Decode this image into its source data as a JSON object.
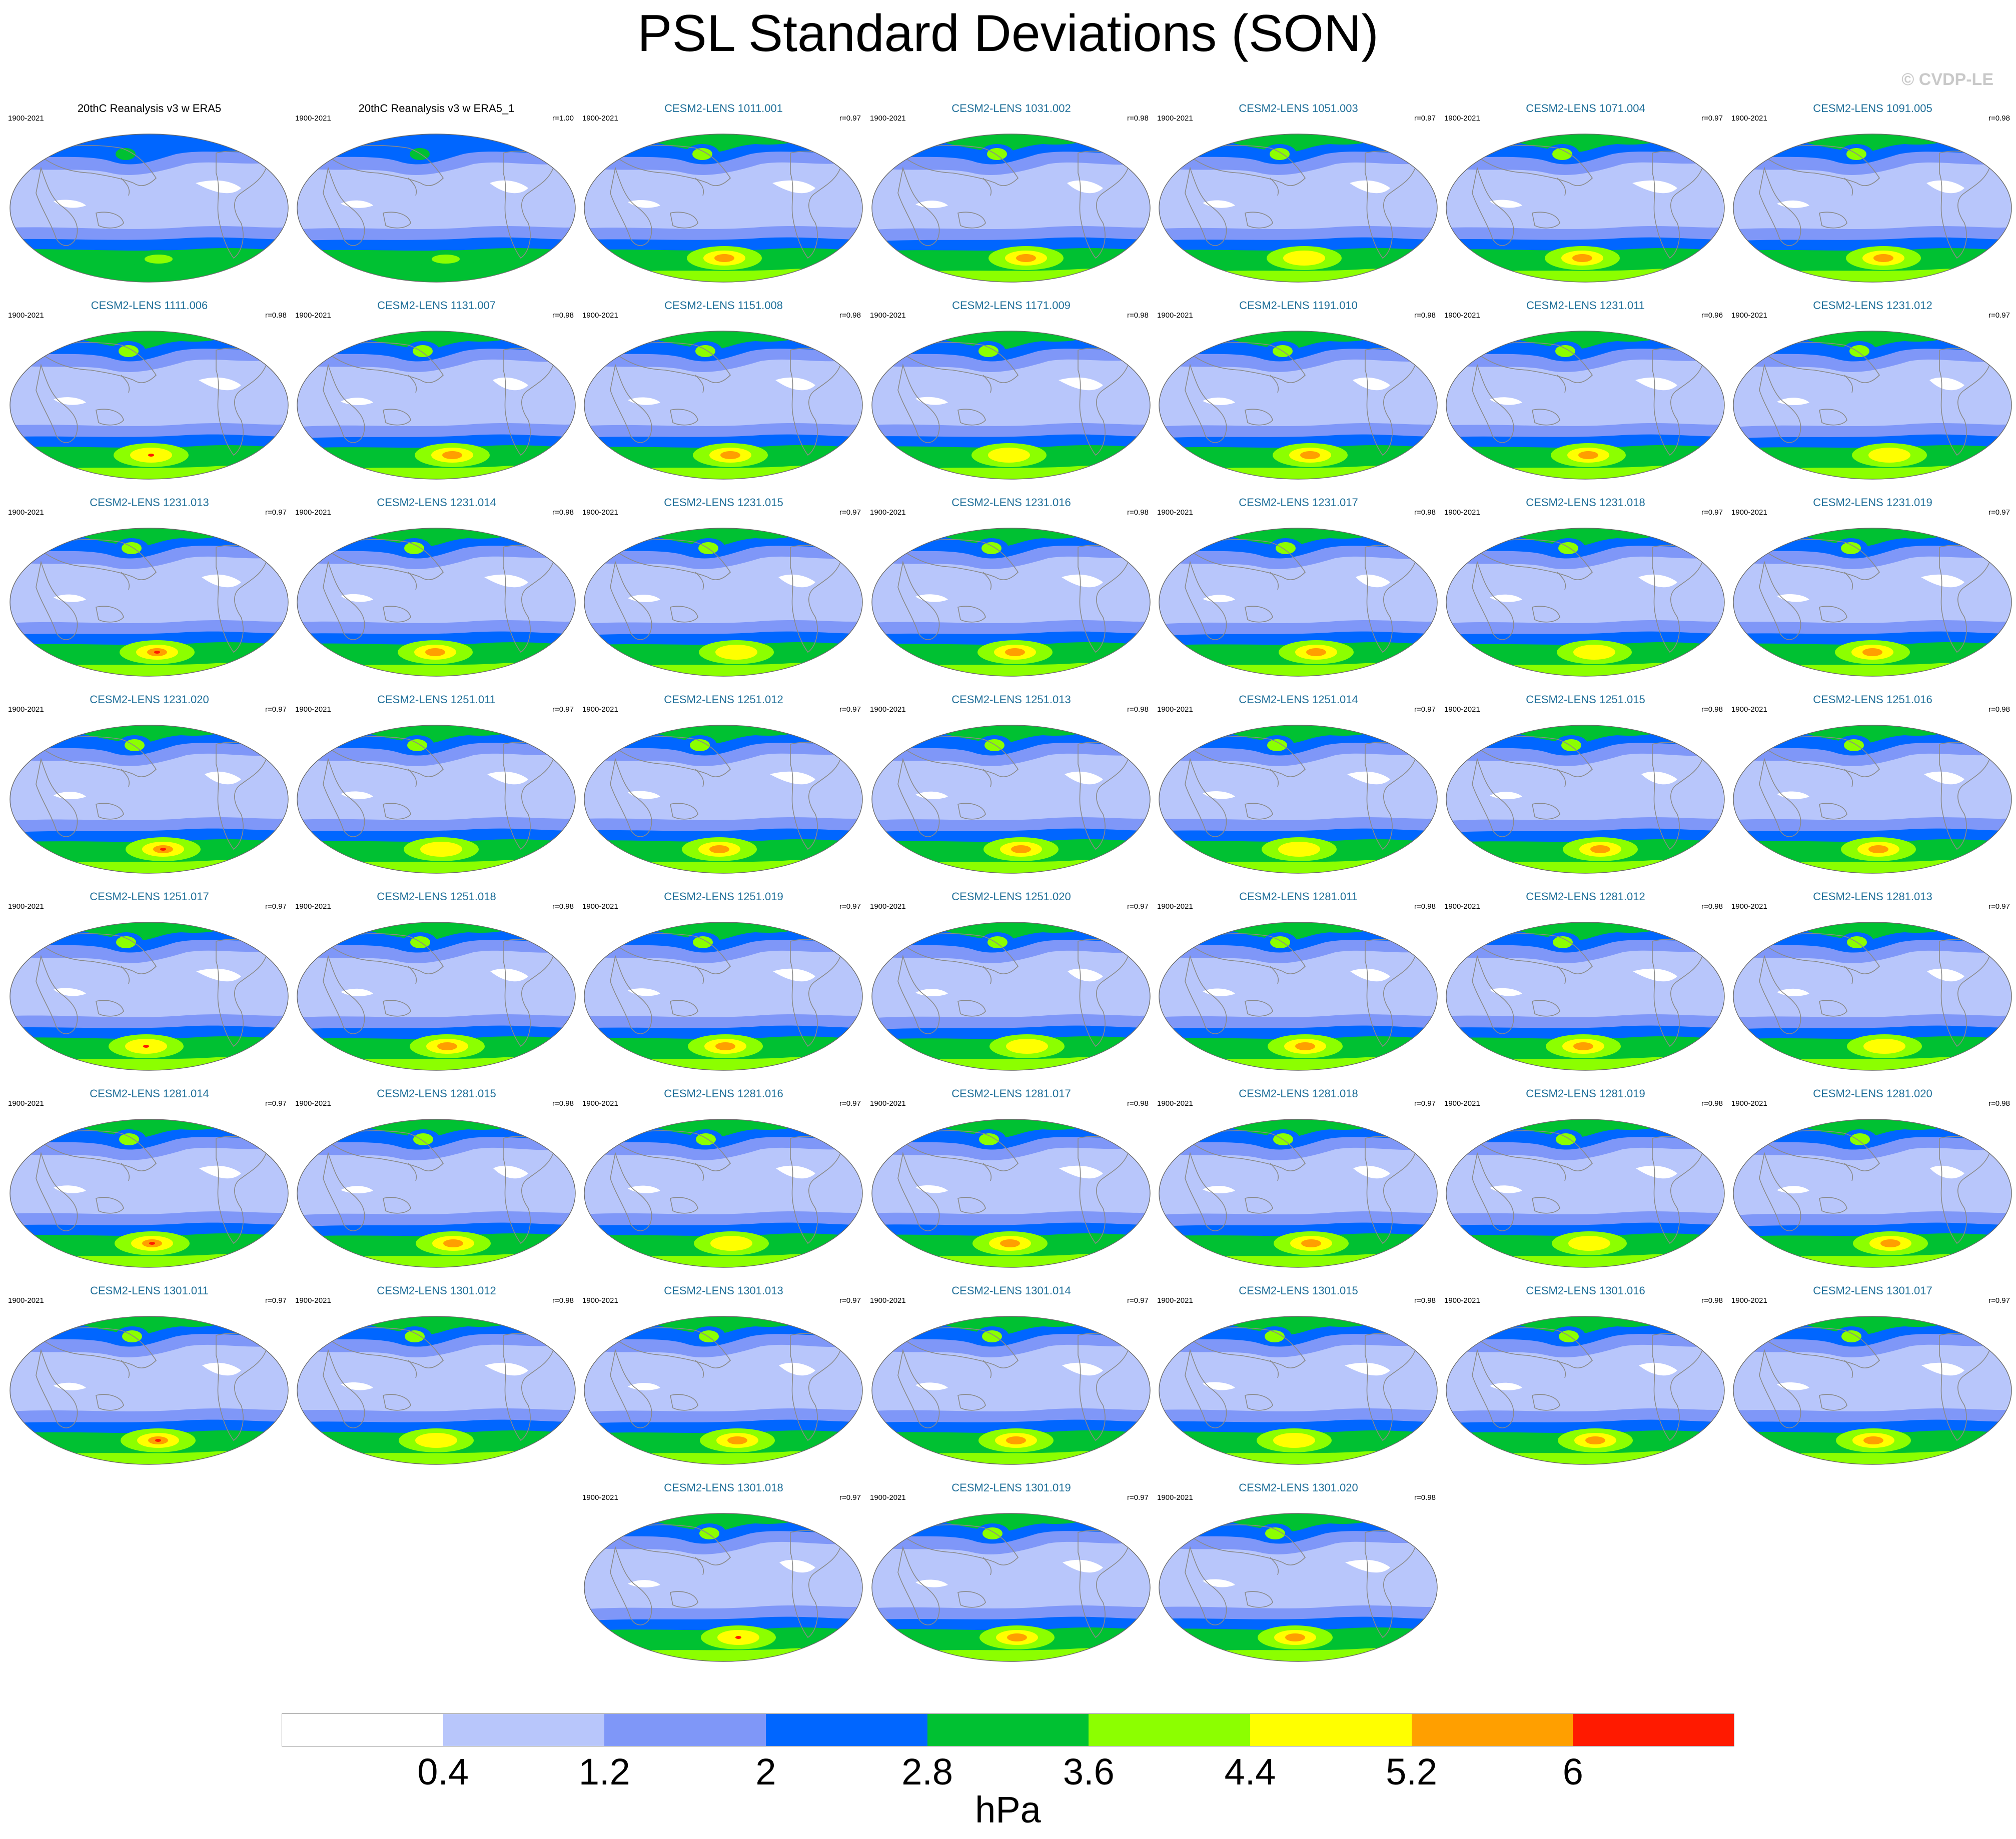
{
  "title": "PSL Standard Deviations (SON)",
  "copyright": "© CVDP-LE",
  "colors": {
    "levels": [
      "#ffffff",
      "#b8c6fb",
      "#7f97f8",
      "#0066ff",
      "#00c132",
      "#8cff00",
      "#ffff00",
      "#ff9f00",
      "#ff1a00"
    ],
    "land_outline": "#8a8a8a",
    "model_title": "#1f6f99"
  },
  "panels": [
    {
      "title": "20thC Reanalysis v3 w ERA5",
      "years": "1900-2021",
      "corr": "",
      "kind": "obs"
    },
    {
      "title": "20thC Reanalysis v3 w ERA5_1",
      "years": "1900-2021",
      "corr": "r=1.00",
      "kind": "obs"
    },
    {
      "title": "CESM2-LENS 1011.001",
      "years": "1900-2021",
      "corr": "r=0.97",
      "kind": "model"
    },
    {
      "title": "CESM2-LENS 1031.002",
      "years": "1900-2021",
      "corr": "r=0.98",
      "kind": "model"
    },
    {
      "title": "CESM2-LENS 1051.003",
      "years": "1900-2021",
      "corr": "r=0.97",
      "kind": "model"
    },
    {
      "title": "CESM2-LENS 1071.004",
      "years": "1900-2021",
      "corr": "r=0.97",
      "kind": "model"
    },
    {
      "title": "CESM2-LENS 1091.005",
      "years": "1900-2021",
      "corr": "r=0.98",
      "kind": "model"
    },
    {
      "title": "CESM2-LENS 1111.006",
      "years": "1900-2021",
      "corr": "r=0.98",
      "kind": "model"
    },
    {
      "title": "CESM2-LENS 1131.007",
      "years": "1900-2021",
      "corr": "r=0.98",
      "kind": "model"
    },
    {
      "title": "CESM2-LENS 1151.008",
      "years": "1900-2021",
      "corr": "r=0.98",
      "kind": "model"
    },
    {
      "title": "CESM2-LENS 1171.009",
      "years": "1900-2021",
      "corr": "r=0.98",
      "kind": "model"
    },
    {
      "title": "CESM2-LENS 1191.010",
      "years": "1900-2021",
      "corr": "r=0.98",
      "kind": "model"
    },
    {
      "title": "CESM2-LENS 1231.011",
      "years": "1900-2021",
      "corr": "r=0.96",
      "kind": "model"
    },
    {
      "title": "CESM2-LENS 1231.012",
      "years": "1900-2021",
      "corr": "r=0.97",
      "kind": "model"
    },
    {
      "title": "CESM2-LENS 1231.013",
      "years": "1900-2021",
      "corr": "r=0.97",
      "kind": "model"
    },
    {
      "title": "CESM2-LENS 1231.014",
      "years": "1900-2021",
      "corr": "r=0.98",
      "kind": "model"
    },
    {
      "title": "CESM2-LENS 1231.015",
      "years": "1900-2021",
      "corr": "r=0.97",
      "kind": "model"
    },
    {
      "title": "CESM2-LENS 1231.016",
      "years": "1900-2021",
      "corr": "r=0.98",
      "kind": "model"
    },
    {
      "title": "CESM2-LENS 1231.017",
      "years": "1900-2021",
      "corr": "r=0.98",
      "kind": "model"
    },
    {
      "title": "CESM2-LENS 1231.018",
      "years": "1900-2021",
      "corr": "r=0.97",
      "kind": "model"
    },
    {
      "title": "CESM2-LENS 1231.019",
      "years": "1900-2021",
      "corr": "r=0.97",
      "kind": "model"
    },
    {
      "title": "CESM2-LENS 1231.020",
      "years": "1900-2021",
      "corr": "r=0.97",
      "kind": "model"
    },
    {
      "title": "CESM2-LENS 1251.011",
      "years": "1900-2021",
      "corr": "r=0.97",
      "kind": "model"
    },
    {
      "title": "CESM2-LENS 1251.012",
      "years": "1900-2021",
      "corr": "r=0.97",
      "kind": "model"
    },
    {
      "title": "CESM2-LENS 1251.013",
      "years": "1900-2021",
      "corr": "r=0.98",
      "kind": "model"
    },
    {
      "title": "CESM2-LENS 1251.014",
      "years": "1900-2021",
      "corr": "r=0.97",
      "kind": "model"
    },
    {
      "title": "CESM2-LENS 1251.015",
      "years": "1900-2021",
      "corr": "r=0.98",
      "kind": "model"
    },
    {
      "title": "CESM2-LENS 1251.016",
      "years": "1900-2021",
      "corr": "r=0.98",
      "kind": "model"
    },
    {
      "title": "CESM2-LENS 1251.017",
      "years": "1900-2021",
      "corr": "r=0.97",
      "kind": "model"
    },
    {
      "title": "CESM2-LENS 1251.018",
      "years": "1900-2021",
      "corr": "r=0.98",
      "kind": "model"
    },
    {
      "title": "CESM2-LENS 1251.019",
      "years": "1900-2021",
      "corr": "r=0.97",
      "kind": "model"
    },
    {
      "title": "CESM2-LENS 1251.020",
      "years": "1900-2021",
      "corr": "r=0.97",
      "kind": "model"
    },
    {
      "title": "CESM2-LENS 1281.011",
      "years": "1900-2021",
      "corr": "r=0.98",
      "kind": "model"
    },
    {
      "title": "CESM2-LENS 1281.012",
      "years": "1900-2021",
      "corr": "r=0.98",
      "kind": "model"
    },
    {
      "title": "CESM2-LENS 1281.013",
      "years": "1900-2021",
      "corr": "r=0.97",
      "kind": "model"
    },
    {
      "title": "CESM2-LENS 1281.014",
      "years": "1900-2021",
      "corr": "r=0.97",
      "kind": "model"
    },
    {
      "title": "CESM2-LENS 1281.015",
      "years": "1900-2021",
      "corr": "r=0.98",
      "kind": "model"
    },
    {
      "title": "CESM2-LENS 1281.016",
      "years": "1900-2021",
      "corr": "r=0.97",
      "kind": "model"
    },
    {
      "title": "CESM2-LENS 1281.017",
      "years": "1900-2021",
      "corr": "r=0.98",
      "kind": "model"
    },
    {
      "title": "CESM2-LENS 1281.018",
      "years": "1900-2021",
      "corr": "r=0.97",
      "kind": "model"
    },
    {
      "title": "CESM2-LENS 1281.019",
      "years": "1900-2021",
      "corr": "r=0.98",
      "kind": "model"
    },
    {
      "title": "CESM2-LENS 1281.020",
      "years": "1900-2021",
      "corr": "r=0.98",
      "kind": "model"
    },
    {
      "title": "CESM2-LENS 1301.011",
      "years": "1900-2021",
      "corr": "r=0.97",
      "kind": "model"
    },
    {
      "title": "CESM2-LENS 1301.012",
      "years": "1900-2021",
      "corr": "r=0.98",
      "kind": "model"
    },
    {
      "title": "CESM2-LENS 1301.013",
      "years": "1900-2021",
      "corr": "r=0.97",
      "kind": "model"
    },
    {
      "title": "CESM2-LENS 1301.014",
      "years": "1900-2021",
      "corr": "r=0.97",
      "kind": "model"
    },
    {
      "title": "CESM2-LENS 1301.015",
      "years": "1900-2021",
      "corr": "r=0.98",
      "kind": "model"
    },
    {
      "title": "CESM2-LENS 1301.016",
      "years": "1900-2021",
      "corr": "r=0.98",
      "kind": "model"
    },
    {
      "title": "CESM2-LENS 1301.017",
      "years": "1900-2021",
      "corr": "r=0.97",
      "kind": "model"
    },
    {
      "title": "CESM2-LENS 1301.018",
      "years": "1900-2021",
      "corr": "r=0.97",
      "kind": "model"
    },
    {
      "title": "CESM2-LENS 1301.019",
      "years": "1900-2021",
      "corr": "r=0.97",
      "kind": "model"
    },
    {
      "title": "CESM2-LENS 1301.020",
      "years": "1900-2021",
      "corr": "r=0.98",
      "kind": "model"
    }
  ],
  "colorbar": {
    "labels": [
      "0.4",
      "1.2",
      "2",
      "2.8",
      "3.6",
      "4.4",
      "5.2",
      "6"
    ],
    "units": "hPa"
  }
}
